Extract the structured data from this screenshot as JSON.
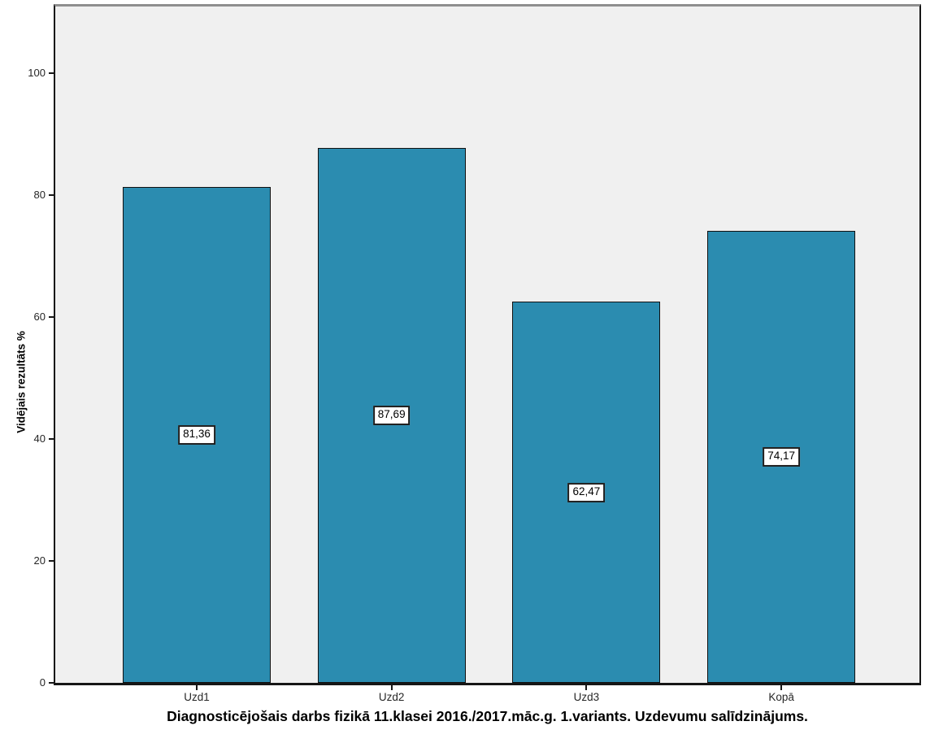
{
  "chart": {
    "title": "Diagnosticējošais darbs fizikā 11.klasei 2016./2017.māc.g. 1.variants. Uzdevumu salīdzinājums.",
    "y_axis_label": "Vidējais rezultāts %"
  },
  "chart_data": {
    "type": "bar",
    "categories": [
      "Uzd1",
      "Uzd2",
      "Uzd3",
      "Kopā"
    ],
    "values": [
      81.36,
      87.69,
      62.47,
      74.17
    ],
    "value_labels": [
      "81,36",
      "87,69",
      "62,47",
      "74,17"
    ],
    "title": "Diagnosticējošais darbs fizikā 11.klasei 2016./2017.māc.g. 1.variants. Uzdevumu salīdzinājums.",
    "xlabel": "",
    "ylabel": "Vidējais rezultāts %",
    "ylim": [
      0,
      100
    ],
    "y_ticks": [
      0,
      20,
      40,
      60,
      80,
      100
    ],
    "grid": false,
    "legend": false,
    "colors": {
      "bar_fill": "#2B8CB0",
      "bar_border": "#111111",
      "plot_background": "#f0f0f0",
      "value_label_background": "#ffffff",
      "value_label_border": "#1c1c1c",
      "tick_text": "#262626"
    },
    "value_label_position": "center-of-bar",
    "title_position": "bottom"
  }
}
